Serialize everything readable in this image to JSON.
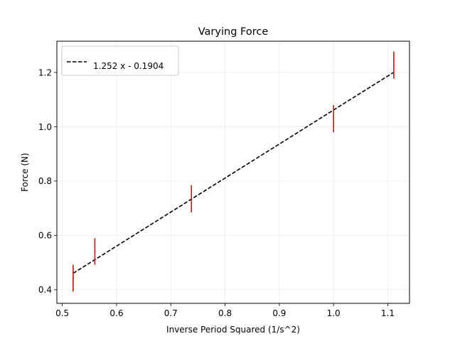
{
  "chart_data": {
    "type": "scatter",
    "title": "Varying Force",
    "xlabel": "Inverse Period Squared (1/s^2)",
    "ylabel": "Force (N)",
    "xlim": [
      0.49,
      1.14
    ],
    "ylim": [
      0.35,
      1.315
    ],
    "xticks": [
      0.5,
      0.6,
      0.7,
      0.8,
      0.9,
      1.0,
      1.1
    ],
    "xtick_labels": [
      "0.5",
      "0.6",
      "0.7",
      "0.8",
      "0.9",
      "1.0",
      "1.1"
    ],
    "yticks": [
      0.4,
      0.6,
      0.8,
      1.0,
      1.2
    ],
    "ytick_labels": [
      "0.4",
      "0.6",
      "0.8",
      "1.0",
      "1.2"
    ],
    "grid": true,
    "legend_position": "top-left",
    "series": [
      {
        "kind": "errorbar",
        "color": "#ff0000",
        "x": [
          0.52,
          0.56,
          0.738,
          1.0,
          1.111
        ],
        "y": [
          0.443,
          0.541,
          0.735,
          1.03,
          1.227
        ],
        "yerr": [
          0.049,
          0.049,
          0.05,
          0.05,
          0.05
        ]
      },
      {
        "kind": "fit-line",
        "name": "1.252 x - 0.1904",
        "color": "#000000",
        "line_style": "dashed",
        "slope": 1.252,
        "intercept": -0.1904,
        "x_range": [
          0.52,
          1.111
        ]
      }
    ]
  }
}
